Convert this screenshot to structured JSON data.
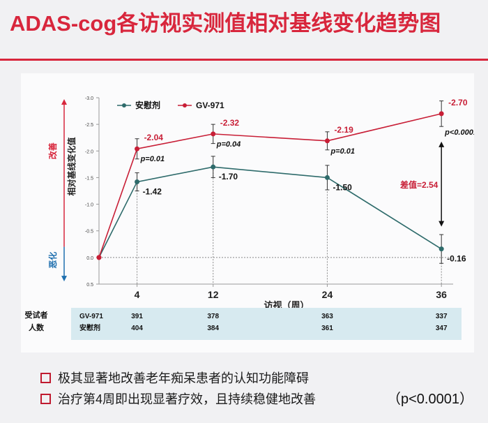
{
  "title": "ADAS-cog各访视实测值相对基线变化趋势图",
  "colors": {
    "accent": "#d8263c",
    "gv971": "#c81e36",
    "placebo": "#2e6b6b",
    "improve": "#d8263c",
    "worsen": "#1e6fae"
  },
  "chart_data": {
    "type": "line",
    "xlabel": "访视（周）",
    "ylabel": "相对基线变化值",
    "x": [
      0,
      4,
      12,
      24,
      36
    ],
    "x_ticks": [
      "4",
      "12",
      "24",
      "36"
    ],
    "y_ticks": [
      "-3.0",
      "-2.5",
      "-2.0",
      "-1.5",
      "-1.0",
      "-0.5",
      "0.0",
      "0.5"
    ],
    "ylim": [
      0.5,
      -3.0
    ],
    "y_inverted": true,
    "improve_label": "改善",
    "worsen_label": "恶化",
    "series": [
      {
        "name": "安慰剂",
        "values": [
          0.0,
          -1.42,
          -1.7,
          -1.5,
          -0.16
        ],
        "labels": [
          "",
          "-1.42",
          "-1.70",
          "-1.50",
          "-0.16"
        ],
        "errors": [
          0,
          0.17,
          0.2,
          0.23,
          0.27
        ]
      },
      {
        "name": "GV-971",
        "values": [
          0.0,
          -2.04,
          -2.32,
          -2.19,
          -2.7
        ],
        "labels": [
          "",
          "-2.04",
          "-2.32",
          "-2.19",
          "-2.70"
        ],
        "errors": [
          0,
          0.19,
          0.18,
          0.17,
          0.24
        ]
      }
    ],
    "pvalues": [
      "",
      "p=0.01",
      "p=0.04",
      "p=0.01",
      "p<0.0001"
    ],
    "difference_label": "差值=2.54",
    "legend": "top-left",
    "grid": false
  },
  "table": {
    "header": "受试者人数",
    "rows": [
      {
        "name": "GV-971",
        "values": [
          "391",
          "378",
          "363",
          "337"
        ]
      },
      {
        "name": "安慰剂",
        "values": [
          "404",
          "384",
          "361",
          "347"
        ]
      }
    ]
  },
  "notes": [
    "极其显著地改善老年痴呆患者的认知功能障碍",
    "治疗第4周即出现显著疗效，且持续稳健地改善"
  ],
  "notes_pvalue": "（p<0.0001）"
}
